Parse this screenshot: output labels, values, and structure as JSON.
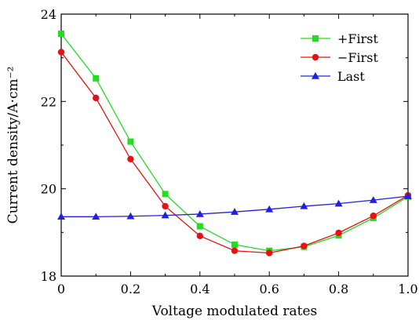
{
  "chart_data": {
    "type": "line",
    "title": "",
    "xlabel": "Voltage modulated rates",
    "ylabel": "Current density/A·cm⁻²",
    "xlim": [
      0,
      1.0
    ],
    "ylim": [
      18,
      24
    ],
    "xticks": [
      "0",
      "0.2",
      "0.4",
      "0.6",
      "0.8",
      "1.0"
    ],
    "yticks": [
      "18",
      "20",
      "22",
      "24"
    ],
    "grid": false,
    "legend_position": "top-right",
    "x": [
      0,
      0.1,
      0.2,
      0.3,
      0.4,
      0.5,
      0.6,
      0.7,
      0.8,
      0.9,
      1.0
    ],
    "series": [
      {
        "name": "+First",
        "color": "#22dd22",
        "marker": "square",
        "values": [
          23.55,
          22.53,
          21.08,
          19.88,
          19.14,
          18.72,
          18.58,
          18.67,
          18.93,
          19.33,
          19.82
        ]
      },
      {
        "name": "−First",
        "color": "#e81010",
        "marker": "circle",
        "values": [
          23.13,
          22.08,
          20.68,
          19.6,
          18.92,
          18.58,
          18.53,
          18.69,
          18.99,
          19.38,
          19.85
        ]
      },
      {
        "name": "Last",
        "color": "#2020dd",
        "marker": "triangle",
        "values": [
          19.36,
          19.36,
          19.37,
          19.39,
          19.42,
          19.47,
          19.53,
          19.6,
          19.66,
          19.74,
          19.83
        ]
      }
    ]
  }
}
